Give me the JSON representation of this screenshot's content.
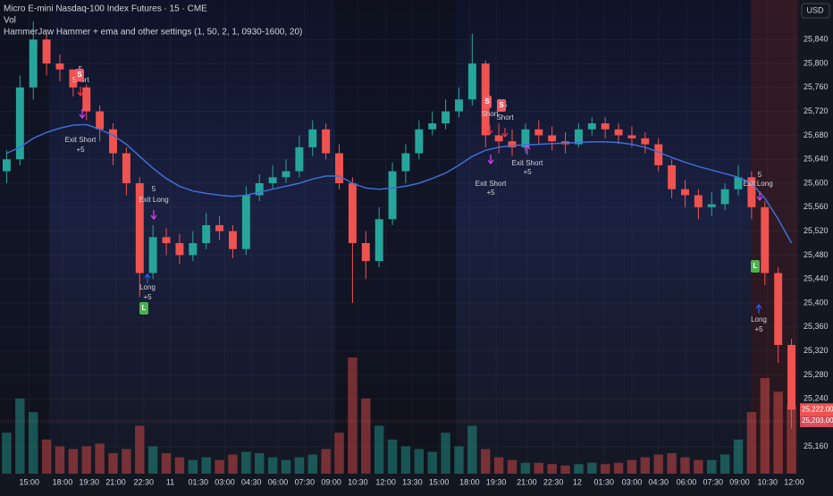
{
  "header": {
    "symbol": "Micro E-mini Nasdaq-100 Index Futures · 15 · CME",
    "volume_label": "Vol",
    "indicator": "HammerJaw Hammer + ema and other settings (1, 50, 2, 1, 0930-1600, 20)",
    "currency": "USD"
  },
  "chart_data": {
    "type": "candlestick",
    "up_color": "#26a69a",
    "down_color": "#ef5350",
    "ema_color": "#3d6fd6",
    "grid": true,
    "ylim": [
      25115,
      25906
    ],
    "yticks": [
      {
        "value": 25160,
        "label": "25,160"
      },
      {
        "value": 25200,
        "label": "25,200"
      },
      {
        "value": 25240,
        "label": "25,240"
      },
      {
        "value": 25280,
        "label": "25,280"
      },
      {
        "value": 25320,
        "label": "25,320"
      },
      {
        "value": 25360,
        "label": "25,360"
      },
      {
        "value": 25400,
        "label": "25,400"
      },
      {
        "value": 25440,
        "label": "25,440"
      },
      {
        "value": 25480,
        "label": "25,480"
      },
      {
        "value": 25520,
        "label": "25,520"
      },
      {
        "value": 25560,
        "label": "25,560"
      },
      {
        "value": 25600,
        "label": "25,600"
      },
      {
        "value": 25640,
        "label": "25,640"
      },
      {
        "value": 25680,
        "label": "25,680"
      },
      {
        "value": 25720,
        "label": "25,720"
      },
      {
        "value": 25760,
        "label": "25,760"
      },
      {
        "value": 25800,
        "label": "25,800"
      },
      {
        "value": 25840,
        "label": "25,840"
      }
    ],
    "xlim": [
      0,
      60
    ],
    "xticks": [
      {
        "value": 2.2,
        "label": "15:00"
      },
      {
        "value": 4.7,
        "label": "18:00"
      },
      {
        "value": 6.7,
        "label": "19:30"
      },
      {
        "value": 8.7,
        "label": "21:00"
      },
      {
        "value": 10.8,
        "label": "22:30"
      },
      {
        "value": 12.8,
        "label": "11"
      },
      {
        "value": 14.9,
        "label": "01:30"
      },
      {
        "value": 16.9,
        "label": "03:00"
      },
      {
        "value": 18.9,
        "label": "04:30"
      },
      {
        "value": 20.9,
        "label": "06:00"
      },
      {
        "value": 22.9,
        "label": "07:30"
      },
      {
        "value": 24.9,
        "label": "09:00"
      },
      {
        "value": 26.9,
        "label": "10:30"
      },
      {
        "value": 29,
        "label": "12:00"
      },
      {
        "value": 31,
        "label": "13:30"
      },
      {
        "value": 33,
        "label": "15:00"
      },
      {
        "value": 35.3,
        "label": "18:00"
      },
      {
        "value": 37.3,
        "label": "19:30"
      },
      {
        "value": 39.6,
        "label": "21:00"
      },
      {
        "value": 41.6,
        "label": "22:30"
      },
      {
        "value": 43.4,
        "label": "12"
      },
      {
        "value": 45.4,
        "label": "01:30"
      },
      {
        "value": 47.5,
        "label": "03:00"
      },
      {
        "value": 49.5,
        "label": "04:30"
      },
      {
        "value": 51.6,
        "label": "06:00"
      },
      {
        "value": 53.6,
        "label": "07:30"
      },
      {
        "value": 55.6,
        "label": "09:00"
      },
      {
        "value": 57.7,
        "label": "10:30"
      },
      {
        "value": 59.7,
        "label": "12:00"
      }
    ],
    "open": [
      25620,
      25640,
      25760,
      25840,
      25800,
      25790,
      25760,
      25720,
      25690,
      25650,
      25600,
      25450,
      25510,
      25500,
      25480,
      25500,
      25530,
      25520,
      25490,
      25580,
      25600,
      25610,
      25620,
      25660,
      25690,
      25650,
      25600,
      25500,
      25470,
      25540,
      25620,
      25650,
      25690,
      25700,
      25720,
      25740,
      25800,
      25680,
      25670,
      25660,
      25690,
      25680,
      25670,
      25665,
      25690,
      25700,
      25690,
      25680,
      25675,
      25665,
      25630,
      25590,
      25580,
      25560,
      25565,
      25590,
      25610,
      25560,
      25450,
      25330
    ],
    "high": [
      25655,
      25780,
      25870,
      25850,
      25815,
      25790,
      25765,
      25730,
      25700,
      25660,
      25610,
      25530,
      25525,
      25515,
      25520,
      25550,
      25545,
      25530,
      25595,
      25615,
      25630,
      25640,
      25680,
      25705,
      25700,
      25665,
      25610,
      25520,
      25560,
      25635,
      25665,
      25705,
      25720,
      25740,
      25760,
      25850,
      25805,
      25700,
      25690,
      25700,
      25705,
      25695,
      25685,
      25700,
      25710,
      25710,
      25700,
      25695,
      25685,
      25675,
      25640,
      25605,
      25590,
      25585,
      25600,
      25630,
      25620,
      25570,
      25460,
      25340
    ],
    "low": [
      25600,
      25630,
      25740,
      25780,
      25770,
      25745,
      25705,
      25670,
      25630,
      25580,
      25410,
      25440,
      25480,
      25465,
      25470,
      25490,
      25505,
      25475,
      25480,
      25570,
      25590,
      25600,
      25610,
      25645,
      25640,
      25590,
      25400,
      25440,
      25460,
      25530,
      25600,
      25640,
      25680,
      25690,
      25710,
      25730,
      25660,
      25650,
      25645,
      25650,
      25665,
      25655,
      25650,
      25660,
      25680,
      25675,
      25665,
      25660,
      25650,
      25620,
      25575,
      25560,
      25540,
      25545,
      25555,
      25580,
      25540,
      25430,
      25300,
      25190
    ],
    "close": [
      25640,
      25760,
      25840,
      25800,
      25790,
      25760,
      25720,
      25690,
      25650,
      25600,
      25450,
      25510,
      25500,
      25480,
      25500,
      25530,
      25520,
      25490,
      25580,
      25600,
      25610,
      25620,
      25660,
      25690,
      25650,
      25600,
      25500,
      25470,
      25540,
      25620,
      25650,
      25690,
      25700,
      25720,
      25740,
      25800,
      25680,
      25670,
      25660,
      25690,
      25680,
      25670,
      25665,
      25690,
      25700,
      25690,
      25680,
      25675,
      25665,
      25630,
      25590,
      25580,
      25560,
      25565,
      25590,
      25610,
      25560,
      25450,
      25330,
      25222
    ],
    "volume": [
      30,
      55,
      45,
      25,
      20,
      18,
      20,
      22,
      15,
      18,
      35,
      20,
      15,
      12,
      10,
      12,
      10,
      14,
      16,
      15,
      12,
      10,
      12,
      14,
      18,
      30,
      85,
      55,
      35,
      25,
      20,
      18,
      16,
      30,
      20,
      35,
      18,
      12,
      10,
      8,
      8,
      7,
      6,
      7,
      8,
      7,
      8,
      10,
      12,
      14,
      15,
      12,
      10,
      10,
      14,
      25,
      45,
      70,
      60,
      50
    ],
    "ema": [
      25650,
      25660,
      25675,
      25685,
      25692,
      25697,
      25698,
      25690,
      25680,
      25665,
      25645,
      25625,
      25608,
      25595,
      25587,
      25583,
      25580,
      25578,
      25580,
      25585,
      25590,
      25595,
      25600,
      25607,
      25612,
      25612,
      25600,
      25592,
      25590,
      25592,
      25595,
      25600,
      25608,
      25617,
      25630,
      25645,
      25655,
      25660,
      25663,
      25664,
      25665,
      25666,
      25667,
      25668,
      25669,
      25669,
      25668,
      25665,
      25660,
      25652,
      25643,
      25635,
      25628,
      25622,
      25616,
      25610,
      25600,
      25575,
      25540,
      25500
    ],
    "last_price": {
      "value": 25222,
      "label": "25,222.00"
    },
    "line_price": {
      "value": 25203,
      "label": "25,203.00"
    },
    "annotations": [
      "5",
      "Short",
      "Exit Short",
      "+5",
      "5",
      "Exit Long",
      "Long",
      "+5",
      "5",
      "Short",
      "5",
      "Short",
      "Exit Short",
      "+5",
      "Exit Short",
      "+5",
      "5",
      "Exit Long",
      "Long",
      "+5"
    ],
    "badges": [
      "S",
      "S",
      "S",
      "L",
      "L"
    ]
  }
}
